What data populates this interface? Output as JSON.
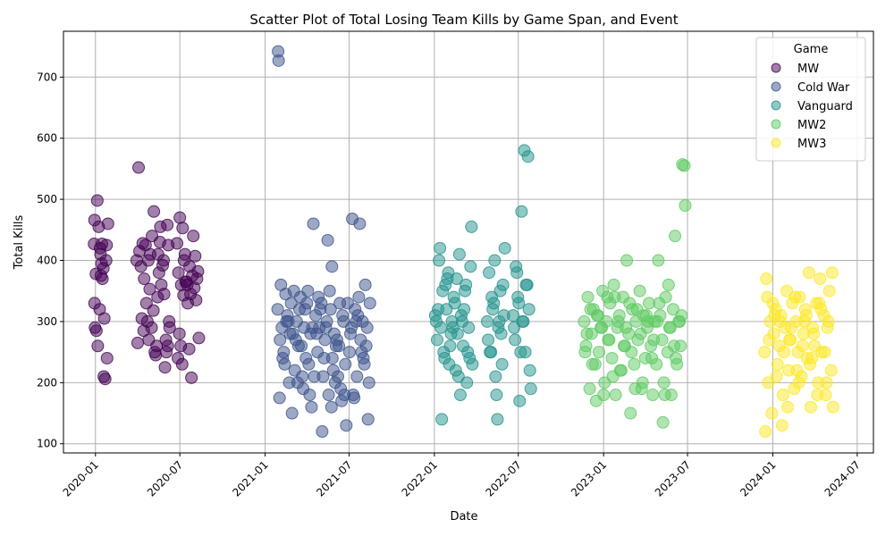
{
  "chart_data": {
    "type": "scatter",
    "title": "Scatter Plot of Total Losing Team Kills by Game Span, and Event",
    "xlabel": "Date",
    "ylabel": "Total Kills",
    "x_axis_type": "date",
    "xlim": [
      "2019-10-24",
      "2024-08-05"
    ],
    "ylim": [
      85,
      775
    ],
    "x_ticks": [
      "2020-01",
      "2020-07",
      "2021-01",
      "2021-07",
      "2022-01",
      "2022-07",
      "2023-01",
      "2023-07",
      "2024-01",
      "2024-07"
    ],
    "y_ticks": [
      100,
      200,
      300,
      400,
      500,
      600,
      700
    ],
    "grid": true,
    "legend": {
      "title": "Game",
      "placement": "top-right"
    },
    "marker_alpha": 0.5,
    "series": [
      {
        "name": "MW",
        "color": "#440154",
        "x": [
          "2019-12-29",
          "2019-12-30",
          "2020-01-02",
          "2020-01-05",
          "2020-01-08",
          "2020-01-12",
          "2020-01-15",
          "2020-01-18",
          "2020-01-22",
          "2020-01-25",
          "2019-12-30",
          "2020-01-03",
          "2020-01-10",
          "2020-01-16",
          "2020-01-20",
          "2020-01-28",
          "2020-01-06",
          "2020-01-14",
          "2019-12-31",
          "2020-01-11",
          "2020-01-19",
          "2020-01-24",
          "2020-01-13",
          "2020-01-26",
          "2020-03-30",
          "2020-04-03",
          "2020-04-08",
          "2020-04-12",
          "2020-04-18",
          "2020-04-22",
          "2020-04-27",
          "2020-05-02",
          "2020-05-06",
          "2020-05-10",
          "2020-05-15",
          "2020-05-20",
          "2020-05-25",
          "2020-05-30",
          "2020-06-04",
          "2020-06-08",
          "2020-04-01",
          "2020-04-10",
          "2020-04-20",
          "2020-05-01",
          "2020-05-12",
          "2020-05-22",
          "2020-06-02",
          "2020-06-06",
          "2020-04-05",
          "2020-04-15",
          "2020-04-25",
          "2020-05-05",
          "2020-05-17",
          "2020-05-27",
          "2020-06-09",
          "2020-04-14",
          "2020-04-24",
          "2020-05-08",
          "2020-05-19",
          "2020-05-28",
          "2020-06-05",
          "2020-04-28",
          "2020-05-14",
          "2020-06-01",
          "2020-06-25",
          "2020-06-28",
          "2020-07-01",
          "2020-07-04",
          "2020-07-07",
          "2020-07-10",
          "2020-07-14",
          "2020-07-18",
          "2020-07-22",
          "2020-07-26",
          "2020-07-30",
          "2020-08-03",
          "2020-08-07",
          "2020-08-11",
          "2020-06-27",
          "2020-07-03",
          "2020-07-09",
          "2020-07-15",
          "2020-07-21",
          "2020-07-28",
          "2020-08-05",
          "2020-06-30",
          "2020-07-12",
          "2020-07-24",
          "2020-08-01",
          "2020-08-09",
          "2020-07-06",
          "2020-07-17"
        ],
        "y": [
          427,
          466,
          378,
          498,
          455,
          410,
          427,
          387,
          206,
          425,
          330,
          285,
          320,
          370,
          305,
          460,
          260,
          395,
          290,
          420,
          210,
          400,
          375,
          240,
          400,
          552,
          390,
          428,
          425,
          300,
          353,
          440,
          480,
          245,
          410,
          455,
          392,
          225,
          458,
          300,
          265,
          305,
          330,
          290,
          260,
          360,
          250,
          425,
          415,
          370,
          270,
          318,
          380,
          400,
          290,
          285,
          400,
          250,
          430,
          345,
          260,
          410,
          340,
          270,
          428,
          380,
          470,
          360,
          453,
          400,
          365,
          330,
          390,
          208,
          440,
          407,
          370,
          273,
          240,
          260,
          343,
          365,
          255,
          375,
          335,
          280,
          410,
          345,
          355,
          382,
          230,
          360
        ]
      },
      {
        "name": "Cold War",
        "color": "#3b528b",
        "x": [
          "2021-01-28",
          "2021-02-02",
          "2021-02-06",
          "2021-02-10",
          "2021-02-14",
          "2021-02-18",
          "2021-02-22",
          "2021-02-26",
          "2021-03-02",
          "2021-03-06",
          "2021-03-10",
          "2021-03-14",
          "2021-03-18",
          "2021-03-22",
          "2021-03-26",
          "2021-03-30",
          "2021-04-03",
          "2021-04-07",
          "2021-04-11",
          "2021-04-15",
          "2021-02-04",
          "2021-02-12",
          "2021-02-20",
          "2021-02-28",
          "2021-03-08",
          "2021-03-16",
          "2021-03-24",
          "2021-04-01",
          "2021-04-09",
          "2021-04-17",
          "2021-02-08",
          "2021-02-16",
          "2021-02-24",
          "2021-03-04",
          "2021-03-12",
          "2021-03-20",
          "2021-03-28",
          "2021-04-05",
          "2021-04-13",
          "2021-02-01",
          "2021-01-29",
          "2021-01-30",
          "2021-04-20",
          "2021-04-24",
          "2021-04-28",
          "2021-05-02",
          "2021-05-06",
          "2021-05-10",
          "2021-05-14",
          "2021-05-18",
          "2021-05-22",
          "2021-05-26",
          "2021-05-30",
          "2021-06-03",
          "2021-06-07",
          "2021-06-11",
          "2021-06-15",
          "2021-06-19",
          "2021-06-23",
          "2021-04-22",
          "2021-04-30",
          "2021-05-08",
          "2021-05-16",
          "2021-05-24",
          "2021-06-01",
          "2021-06-09",
          "2021-06-17",
          "2021-04-26",
          "2021-05-04",
          "2021-05-12",
          "2021-05-20",
          "2021-05-28",
          "2021-06-05",
          "2021-06-13",
          "2021-06-21",
          "2021-05-25",
          "2021-06-25",
          "2021-06-28",
          "2021-07-02",
          "2021-07-06",
          "2021-07-10",
          "2021-07-14",
          "2021-07-18",
          "2021-07-22",
          "2021-07-26",
          "2021-07-30",
          "2021-08-03",
          "2021-08-07",
          "2021-08-11",
          "2021-08-15",
          "2021-07-04",
          "2021-07-12",
          "2021-07-20",
          "2021-07-28",
          "2021-08-05",
          "2021-08-13",
          "2021-07-08",
          "2021-07-16",
          "2021-07-24",
          "2021-08-01",
          "2021-08-09"
        ],
        "y": [
          320,
          270,
          290,
          250,
          345,
          310,
          200,
          330,
          280,
          220,
          300,
          260,
          340,
          210,
          290,
          240,
          350,
          180,
          160,
          460,
          360,
          230,
          300,
          150,
          270,
          320,
          190,
          330,
          280,
          210,
          240,
          300,
          280,
          350,
          200,
          260,
          320,
          230,
          290,
          175,
          742,
          727,
          310,
          250,
          290,
          330,
          210,
          270,
          300,
          180,
          320,
          240,
          280,
          260,
          210,
          330,
          170,
          300,
          230,
          280,
          320,
          240,
          433,
          160,
          200,
          260,
          310,
          340,
          120,
          290,
          350,
          220,
          270,
          190,
          180,
          390,
          130,
          330,
          250,
          290,
          180,
          320,
          210,
          340,
          270,
          300,
          230,
          260,
          140,
          330,
          280,
          175,
          310,
          250,
          360,
          200,
          468,
          300,
          460,
          240,
          290
        ]
      },
      {
        "name": "Vanguard",
        "color": "#21918c",
        "x": [
          "2022-01-03",
          "2022-01-07",
          "2022-01-11",
          "2022-01-15",
          "2022-01-19",
          "2022-01-23",
          "2022-01-27",
          "2022-01-31",
          "2022-02-04",
          "2022-02-08",
          "2022-02-12",
          "2022-02-16",
          "2022-02-20",
          "2022-02-24",
          "2022-02-28",
          "2022-03-04",
          "2022-03-08",
          "2022-03-12",
          "2022-03-16",
          "2022-03-20",
          "2022-03-24",
          "2022-01-05",
          "2022-01-13",
          "2022-01-21",
          "2022-01-29",
          "2022-02-06",
          "2022-02-14",
          "2022-02-22",
          "2022-03-02",
          "2022-03-10",
          "2022-03-18",
          "2022-01-09",
          "2022-01-17",
          "2022-01-25",
          "2022-02-02",
          "2022-02-10",
          "2022-02-18",
          "2022-02-26",
          "2022-03-06",
          "2022-03-14",
          "2022-03-22",
          "2022-04-25",
          "2022-04-29",
          "2022-05-03",
          "2022-05-07",
          "2022-05-11",
          "2022-05-15",
          "2022-05-19",
          "2022-05-23",
          "2022-05-27",
          "2022-05-31",
          "2022-04-27",
          "2022-05-05",
          "2022-05-13",
          "2022-05-21",
          "2022-05-29",
          "2022-05-01",
          "2022-05-09",
          "2022-05-17",
          "2022-05-25",
          "2022-06-02",
          "2022-06-20",
          "2022-06-24",
          "2022-06-28",
          "2022-07-02",
          "2022-07-06",
          "2022-07-10",
          "2022-07-14",
          "2022-07-18",
          "2022-07-22",
          "2022-07-26",
          "2022-06-22",
          "2022-06-30",
          "2022-07-08",
          "2022-07-16",
          "2022-07-24",
          "2022-06-26",
          "2022-07-04",
          "2022-07-12",
          "2022-07-20",
          "2022-07-28"
        ],
        "y": [
          310,
          270,
          400,
          290,
          350,
          240,
          320,
          380,
          260,
          300,
          340,
          220,
          280,
          410,
          310,
          260,
          350,
          200,
          290,
          390,
          230,
          300,
          420,
          250,
          370,
          280,
          330,
          210,
          300,
          360,
          240,
          320,
          140,
          360,
          230,
          290,
          370,
          180,
          320,
          250,
          455,
          300,
          380,
          250,
          320,
          400,
          180,
          290,
          350,
          230,
          310,
          270,
          340,
          210,
          300,
          360,
          250,
          330,
          140,
          280,
          420,
          310,
          270,
          380,
          330,
          250,
          300,
          580,
          360,
          570,
          220,
          290,
          340,
          480,
          250,
          320,
          390,
          170,
          300,
          360,
          190
        ]
      },
      {
        "name": "MW2",
        "color": "#5ec962",
        "x": [
          "2022-11-20",
          "2022-11-24",
          "2022-11-28",
          "2022-12-02",
          "2022-12-06",
          "2022-12-10",
          "2022-12-14",
          "2022-12-18",
          "2022-12-22",
          "2022-12-26",
          "2022-12-30",
          "2023-01-03",
          "2023-01-07",
          "2023-01-11",
          "2023-01-15",
          "2023-01-19",
          "2023-01-23",
          "2023-01-27",
          "2023-01-31",
          "2023-02-04",
          "2023-02-08",
          "2023-02-12",
          "2023-02-16",
          "2023-02-20",
          "2023-02-24",
          "2023-02-28",
          "2023-03-04",
          "2023-03-08",
          "2023-03-12",
          "2023-03-16",
          "2023-03-20",
          "2023-03-24",
          "2023-03-28",
          "2023-04-01",
          "2023-04-05",
          "2023-04-09",
          "2023-04-13",
          "2023-04-17",
          "2023-04-21",
          "2023-04-25",
          "2023-04-29",
          "2023-05-03",
          "2023-05-07",
          "2023-05-11",
          "2023-05-15",
          "2023-05-19",
          "2023-05-23",
          "2023-05-27",
          "2023-05-31",
          "2023-06-04",
          "2023-06-08",
          "2023-06-12",
          "2023-06-16",
          "2023-06-20",
          "2023-06-24",
          "2022-11-22",
          "2022-12-04",
          "2022-12-16",
          "2022-12-28",
          "2023-01-09",
          "2023-01-21",
          "2023-02-02",
          "2023-02-14",
          "2023-02-26",
          "2023-03-10",
          "2023-03-22",
          "2023-04-03",
          "2023-04-15",
          "2023-04-27",
          "2023-05-09",
          "2023-05-21",
          "2023-06-02",
          "2023-06-14",
          "2023-06-26",
          "2022-11-26",
          "2022-12-08",
          "2022-12-20",
          "2023-01-01",
          "2023-01-13",
          "2023-01-25",
          "2023-02-06",
          "2023-02-18",
          "2023-03-02",
          "2023-03-14",
          "2023-03-26",
          "2023-04-07",
          "2023-04-19",
          "2023-05-01",
          "2023-05-13",
          "2023-05-25",
          "2023-06-06",
          "2023-06-18"
        ],
        "y": [
          300,
          260,
          340,
          190,
          280,
          320,
          230,
          310,
          250,
          290,
          350,
          200,
          300,
          270,
          330,
          240,
          360,
          180,
          290,
          310,
          220,
          340,
          260,
          400,
          280,
          150,
          320,
          230,
          300,
          270,
          350,
          190,
          310,
          240,
          290,
          330,
          260,
          180,
          300,
          230,
          400,
          310,
          270,
          200,
          340,
          250,
          290,
          180,
          320,
          440,
          230,
          300,
          260,
          557,
          555,
          250,
          320,
          170,
          290,
          340,
          210,
          300,
          260,
          330,
          190,
          280,
          310,
          240,
          300,
          135,
          360,
          260,
          300,
          490,
          280,
          230,
          310,
          180,
          270,
          340,
          220,
          290,
          250,
          320,
          200,
          300,
          270,
          330,
          180,
          290,
          240,
          310
        ]
      },
      {
        "name": "MW3",
        "color": "#fde725",
        "x": [
          "2023-12-14",
          "2023-12-18",
          "2023-12-22",
          "2023-12-26",
          "2023-12-30",
          "2024-01-03",
          "2024-01-07",
          "2024-01-11",
          "2024-01-15",
          "2024-01-19",
          "2024-01-23",
          "2024-01-27",
          "2024-01-31",
          "2024-02-04",
          "2024-02-08",
          "2024-02-12",
          "2024-02-16",
          "2024-02-20",
          "2024-02-24",
          "2024-02-28",
          "2024-03-03",
          "2024-03-07",
          "2024-03-11",
          "2024-03-15",
          "2024-03-19",
          "2024-03-23",
          "2024-03-27",
          "2024-03-31",
          "2024-04-04",
          "2024-04-08",
          "2024-04-12",
          "2024-04-16",
          "2024-04-20",
          "2024-04-24",
          "2024-04-28",
          "2024-05-02",
          "2024-05-06",
          "2024-05-10",
          "2023-12-16",
          "2023-12-24",
          "2024-01-01",
          "2024-01-09",
          "2024-01-17",
          "2024-01-25",
          "2024-02-02",
          "2024-02-10",
          "2024-02-18",
          "2024-02-26",
          "2024-03-05",
          "2024-03-13",
          "2024-03-21",
          "2024-03-29",
          "2024-04-06",
          "2024-04-14",
          "2024-04-22",
          "2024-04-30",
          "2024-05-08",
          "2023-12-20",
          "2024-01-05",
          "2024-01-21",
          "2024-02-06",
          "2024-02-22",
          "2024-03-09",
          "2024-03-25",
          "2024-04-10",
          "2024-04-26"
        ],
        "y": [
          250,
          370,
          200,
          300,
          150,
          280,
          320,
          230,
          260,
          310,
          180,
          290,
          350,
          220,
          270,
          330,
          190,
          300,
          250,
          340,
          210,
          280,
          320,
          240,
          380,
          160,
          290,
          260,
          330,
          200,
          370,
          250,
          310,
          180,
          290,
          350,
          220,
          160,
          120,
          270,
          330,
          210,
          300,
          250,
          160,
          290,
          340,
          200,
          260,
          310,
          230,
          280,
          180,
          320,
          250,
          300,
          380,
          340,
          310,
          130,
          270,
          220,
          300,
          240,
          330,
          200
        ]
      }
    ]
  }
}
